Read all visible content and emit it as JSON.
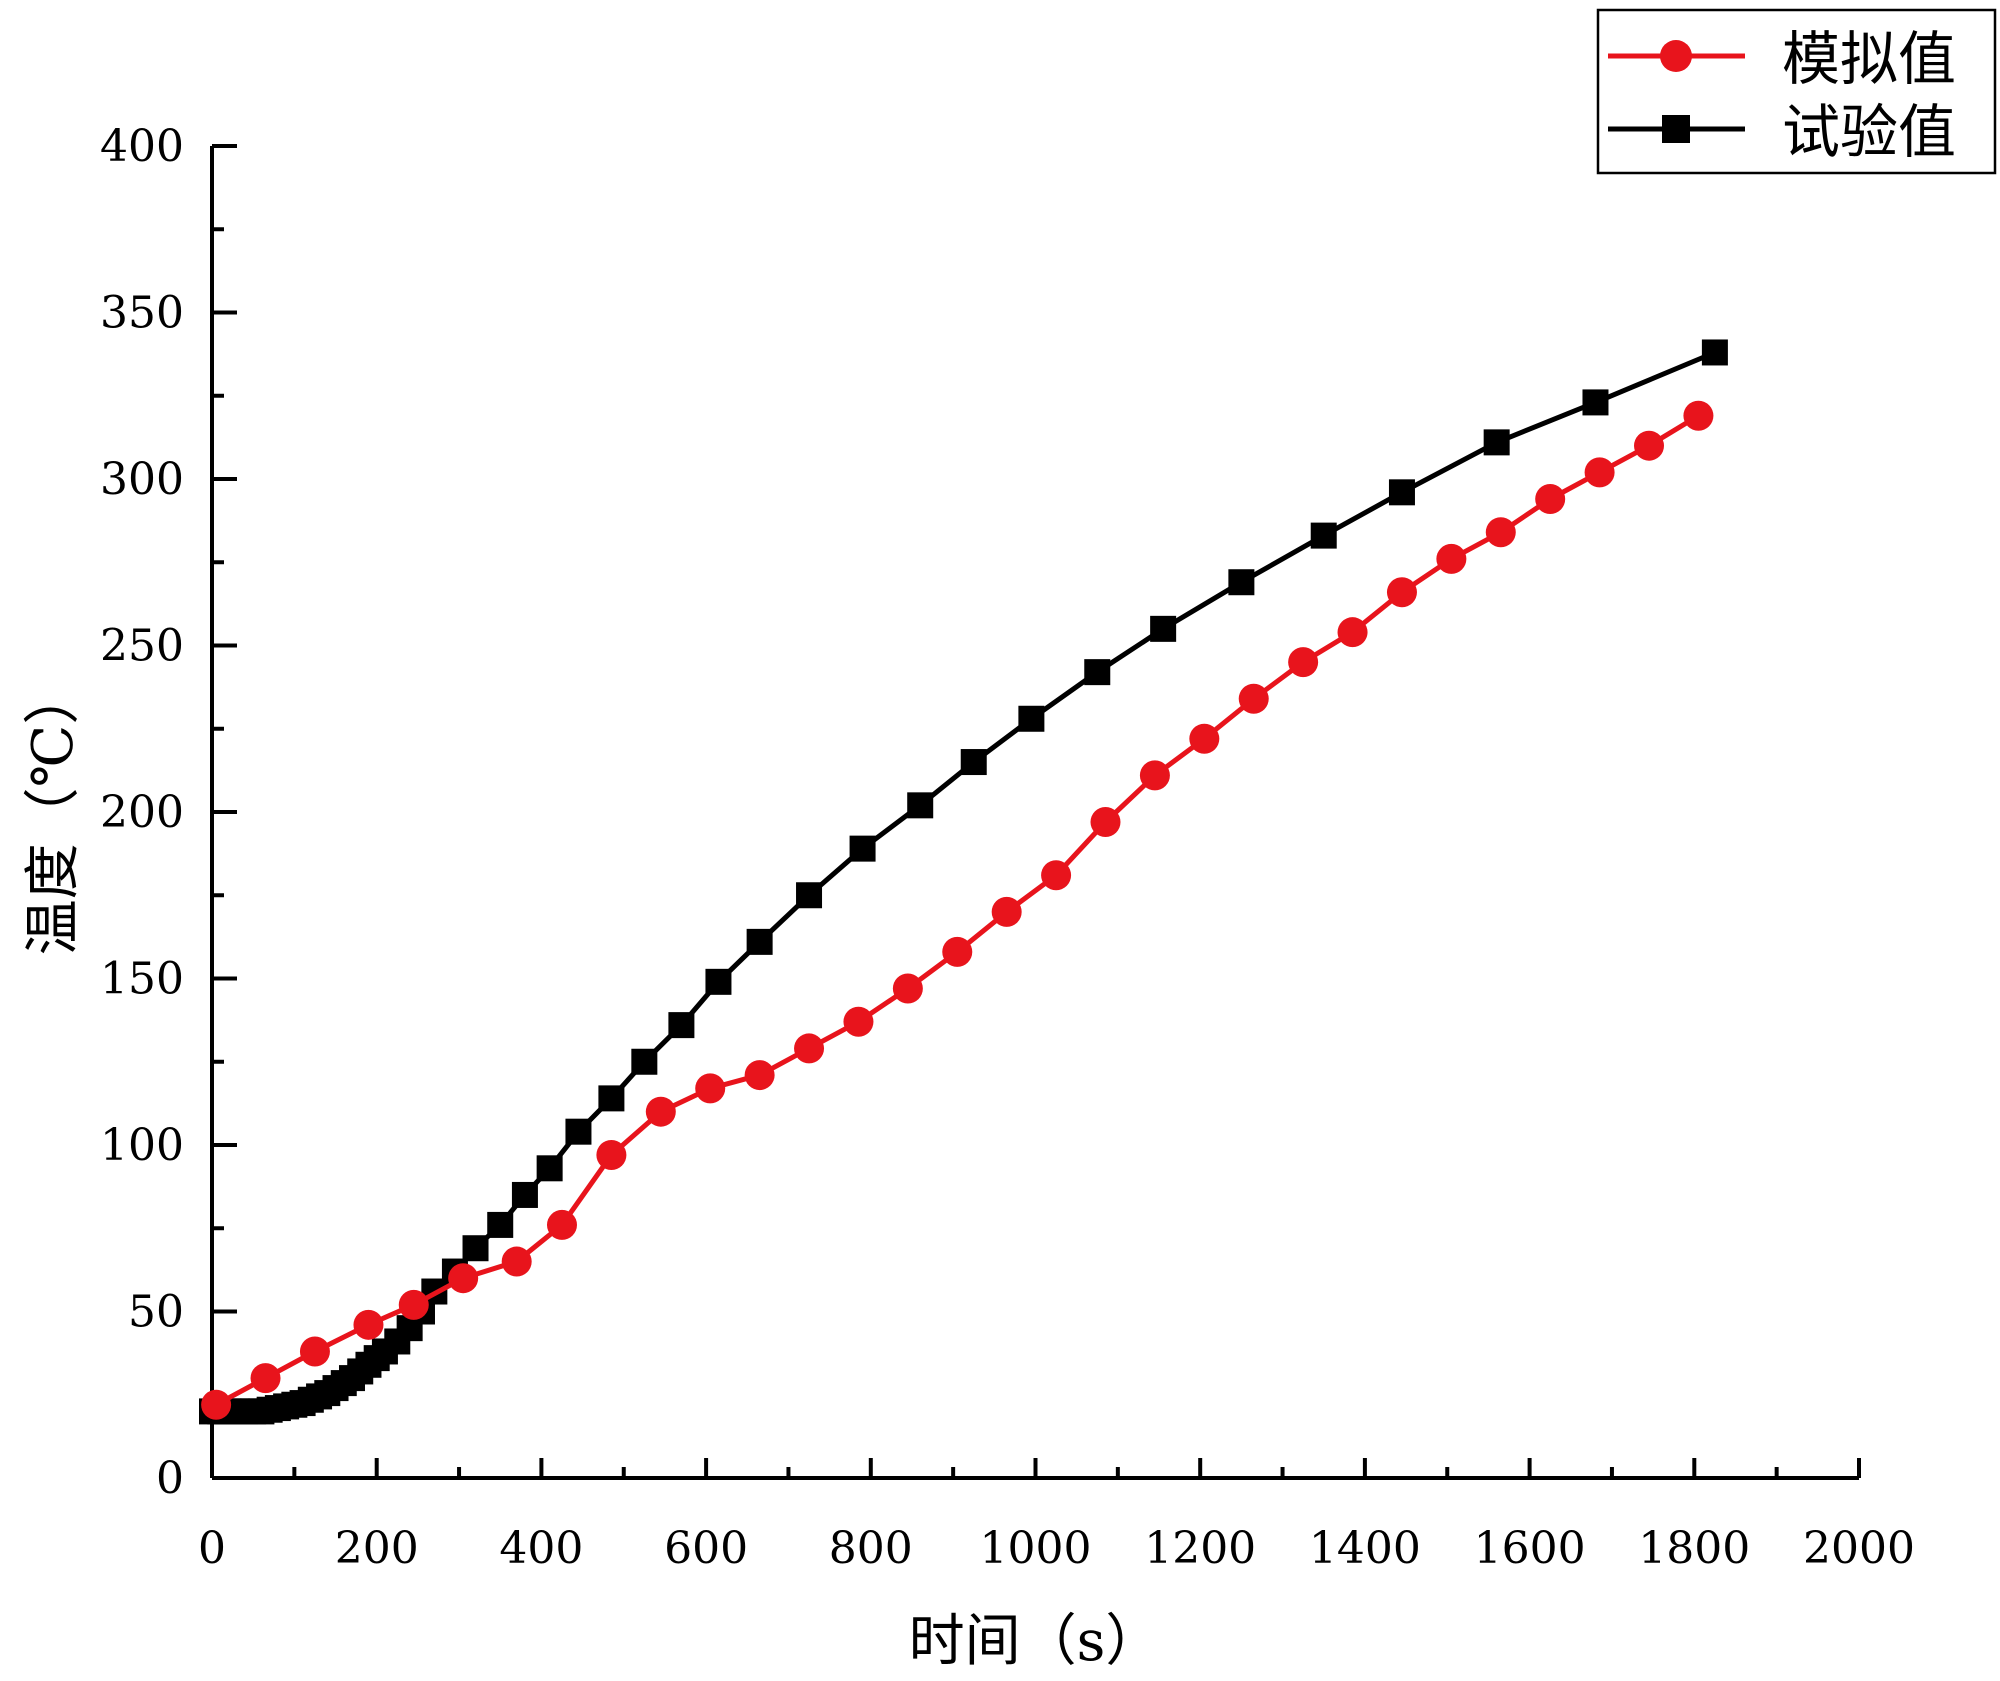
{
  "chart_data": {
    "type": "line",
    "title": "",
    "xlabel": "时间（s）",
    "ylabel": "温度（℃）",
    "xlim": [
      0,
      2000
    ],
    "ylim": [
      0,
      400
    ],
    "xticks": [
      "0",
      "200",
      "400",
      "600",
      "800",
      "1000",
      "1200",
      "1400",
      "1600",
      "1800",
      "2000"
    ],
    "yticks": [
      "0",
      "50",
      "100",
      "150",
      "200",
      "250",
      "300",
      "350",
      "400"
    ],
    "grid": false,
    "legend_position": "top-right",
    "series": [
      {
        "name": "模拟值",
        "color": "#e8141c",
        "marker": "circle",
        "x": [
          5,
          65,
          125,
          190,
          245,
          305,
          370,
          425,
          485,
          545,
          605,
          665,
          725,
          785,
          845,
          905,
          965,
          1025,
          1085,
          1145,
          1205,
          1265,
          1325,
          1385,
          1445,
          1505,
          1565,
          1625,
          1685,
          1745,
          1805
        ],
        "y": [
          22,
          30,
          38,
          46,
          52,
          60,
          65,
          76,
          97,
          110,
          117,
          121,
          129,
          137,
          147,
          158,
          170,
          181,
          197,
          211,
          222,
          234,
          245,
          254,
          266,
          276,
          284,
          294,
          302,
          310,
          319
        ]
      },
      {
        "name": "试验值",
        "color": "#000000",
        "marker": "square",
        "x": [
          0,
          10,
          20,
          30,
          40,
          50,
          60,
          70,
          80,
          90,
          100,
          110,
          120,
          130,
          140,
          150,
          160,
          170,
          180,
          190,
          200,
          210,
          225,
          240,
          255,
          270,
          295,
          320,
          350,
          380,
          410,
          445,
          485,
          525,
          570,
          615,
          665,
          725,
          790,
          860,
          925,
          995,
          1075,
          1155,
          1250,
          1350,
          1445,
          1560,
          1680,
          1825
        ],
        "y": [
          20,
          20,
          20,
          20,
          20,
          20,
          20,
          20.5,
          21,
          21.5,
          22,
          22.5,
          23.5,
          24.5,
          25.5,
          27,
          28.5,
          30,
          32,
          34,
          36,
          38,
          41,
          45,
          50,
          56,
          62,
          69,
          76,
          85,
          93,
          104,
          114,
          125,
          136,
          149,
          161,
          175,
          189,
          202,
          215,
          228,
          242,
          255,
          269,
          283,
          296,
          311,
          323,
          338
        ]
      }
    ]
  }
}
